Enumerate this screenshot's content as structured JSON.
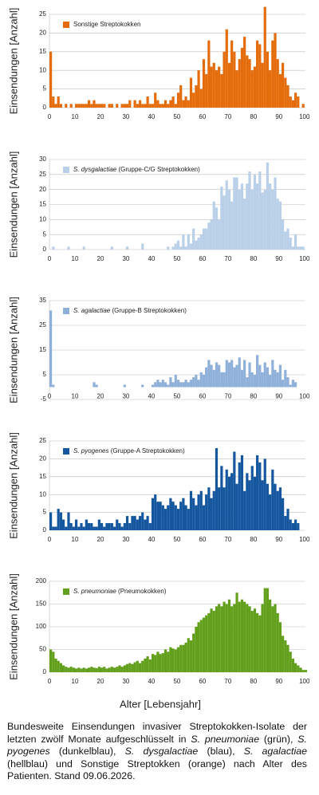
{
  "chart_data": [
    {
      "type": "bar",
      "ylabel": "Einsendungen [Anzahl]",
      "xlim": [
        0,
        101
      ],
      "xticks": [
        0,
        10,
        20,
        30,
        40,
        50,
        60,
        70,
        80,
        90,
        100
      ],
      "ylim": [
        0,
        25
      ],
      "yticks": [
        0,
        5,
        10,
        15,
        20,
        25
      ],
      "grid": true,
      "x": [
        0,
        1,
        2,
        3,
        4,
        5,
        6,
        7,
        8,
        9,
        10,
        11,
        12,
        13,
        14,
        15,
        16,
        17,
        18,
        19,
        20,
        21,
        22,
        23,
        24,
        25,
        26,
        27,
        28,
        29,
        30,
        31,
        32,
        33,
        34,
        35,
        36,
        37,
        38,
        39,
        40,
        41,
        42,
        43,
        44,
        45,
        46,
        47,
        48,
        49,
        50,
        51,
        52,
        53,
        54,
        55,
        56,
        57,
        58,
        59,
        60,
        61,
        62,
        63,
        64,
        65,
        66,
        67,
        68,
        69,
        70,
        71,
        72,
        73,
        74,
        75,
        76,
        77,
        78,
        79,
        80,
        81,
        82,
        83,
        84,
        85,
        86,
        87,
        88,
        89,
        90,
        91,
        92,
        93,
        94,
        95,
        96,
        97,
        98,
        99,
        100
      ],
      "series": [
        {
          "name": "Sonstige Streptokokken",
          "color": "#e46c0a",
          "values": [
            15,
            3,
            1,
            3,
            1,
            0,
            1,
            0,
            1,
            0,
            1,
            1,
            1,
            1,
            1,
            2,
            1,
            2,
            1,
            1,
            1,
            1,
            0,
            1,
            1,
            0,
            1,
            0,
            1,
            1,
            1,
            2,
            0,
            2,
            1,
            2,
            1,
            1,
            3,
            1,
            1,
            4,
            2,
            1,
            1,
            2,
            1,
            2,
            3,
            1,
            4,
            6,
            2,
            3,
            2,
            8,
            4,
            6,
            10,
            5,
            13,
            9,
            18,
            11,
            12,
            10,
            11,
            9,
            15,
            21,
            12,
            18,
            15,
            10,
            13,
            16,
            19,
            14,
            13,
            10,
            11,
            18,
            17,
            12,
            27,
            15,
            10,
            18,
            20,
            13,
            9,
            12,
            8,
            6,
            3,
            2,
            4,
            3,
            0,
            1,
            0
          ]
        }
      ]
    },
    {
      "type": "bar",
      "ylabel": "Einsendungen [Anzahl]",
      "xlim": [
        0,
        101
      ],
      "xticks": [
        0,
        10,
        20,
        30,
        40,
        50,
        60,
        70,
        80,
        90,
        100
      ],
      "ylim": [
        0,
        30
      ],
      "yticks": [
        0,
        5,
        10,
        15,
        20,
        25,
        30
      ],
      "grid": true,
      "x": [
        0,
        1,
        2,
        3,
        4,
        5,
        6,
        7,
        8,
        9,
        10,
        11,
        12,
        13,
        14,
        15,
        16,
        17,
        18,
        19,
        20,
        21,
        22,
        23,
        24,
        25,
        26,
        27,
        28,
        29,
        30,
        31,
        32,
        33,
        34,
        35,
        36,
        37,
        38,
        39,
        40,
        41,
        42,
        43,
        44,
        45,
        46,
        47,
        48,
        49,
        50,
        51,
        52,
        53,
        54,
        55,
        56,
        57,
        58,
        59,
        60,
        61,
        62,
        63,
        64,
        65,
        66,
        67,
        68,
        69,
        70,
        71,
        72,
        73,
        74,
        75,
        76,
        77,
        78,
        79,
        80,
        81,
        82,
        83,
        84,
        85,
        86,
        87,
        88,
        89,
        90,
        91,
        92,
        93,
        94,
        95,
        96,
        97,
        98,
        99,
        100
      ],
      "series": [
        {
          "name": "S. dysgalactiae (Gruppe-C/G Streptokokken)",
          "color": "#b9d0e8",
          "values": [
            0,
            1,
            0,
            0,
            0,
            0,
            0,
            1,
            0,
            0,
            0,
            0,
            0,
            1,
            0,
            0,
            0,
            0,
            0,
            0,
            0,
            0,
            0,
            0,
            1,
            0,
            0,
            0,
            0,
            0,
            1,
            0,
            0,
            0,
            0,
            0,
            2,
            0,
            0,
            0,
            0,
            0,
            0,
            0,
            0,
            0,
            1,
            0,
            1,
            2,
            3,
            1,
            5,
            1,
            5,
            2,
            7,
            3,
            4,
            5,
            7,
            7,
            9,
            10,
            16,
            14,
            10,
            21,
            18,
            23,
            20,
            16,
            24,
            24,
            20,
            22,
            17,
            22,
            26,
            20,
            25,
            22,
            26,
            19,
            20,
            29,
            22,
            20,
            24,
            17,
            16,
            10,
            6,
            7,
            4,
            1,
            5,
            1,
            1,
            1,
            0
          ]
        }
      ]
    },
    {
      "type": "bar",
      "ylabel": "Einsendungen [Anzahl]",
      "xlim": [
        0,
        101
      ],
      "xticks": [
        0,
        10,
        20,
        30,
        40,
        50,
        60,
        70,
        80,
        90,
        100
      ],
      "ylim": [
        -5,
        35
      ],
      "yticks": [
        -5,
        5,
        15,
        25,
        35
      ],
      "grid": true,
      "x": [
        0,
        1,
        2,
        3,
        4,
        5,
        6,
        7,
        8,
        9,
        10,
        11,
        12,
        13,
        14,
        15,
        16,
        17,
        18,
        19,
        20,
        21,
        22,
        23,
        24,
        25,
        26,
        27,
        28,
        29,
        30,
        31,
        32,
        33,
        34,
        35,
        36,
        37,
        38,
        39,
        40,
        41,
        42,
        43,
        44,
        45,
        46,
        47,
        48,
        49,
        50,
        51,
        52,
        53,
        54,
        55,
        56,
        57,
        58,
        59,
        60,
        61,
        62,
        63,
        64,
        65,
        66,
        67,
        68,
        69,
        70,
        71,
        72,
        73,
        74,
        75,
        76,
        77,
        78,
        79,
        80,
        81,
        82,
        83,
        84,
        85,
        86,
        87,
        88,
        89,
        90,
        91,
        92,
        93,
        94,
        95,
        96,
        97,
        98,
        99,
        100
      ],
      "series": [
        {
          "name": "S. agalactiae (Gruppe-B Streptokokken)",
          "color": "#8fb0d8",
          "values": [
            31,
            1,
            0,
            0,
            0,
            0,
            0,
            0,
            0,
            0,
            0,
            0,
            0,
            0,
            0,
            0,
            0,
            2,
            1,
            0,
            0,
            0,
            0,
            0,
            0,
            0,
            0,
            0,
            0,
            1,
            0,
            0,
            0,
            0,
            0,
            0,
            1,
            0,
            0,
            0,
            1,
            2,
            3,
            2,
            3,
            2,
            1,
            4,
            2,
            5,
            3,
            2,
            2,
            3,
            2,
            3,
            4,
            5,
            3,
            6,
            5,
            8,
            11,
            9,
            7,
            10,
            9,
            6,
            6,
            11,
            10,
            11,
            8,
            9,
            12,
            7,
            11,
            4,
            10,
            6,
            5,
            13,
            9,
            6,
            10,
            8,
            5,
            11,
            7,
            6,
            9,
            3,
            7,
            4,
            1,
            3,
            2,
            0,
            0,
            0,
            0
          ]
        }
      ]
    },
    {
      "type": "bar",
      "ylabel": "Einsendungen [Anzahl]",
      "xlim": [
        0,
        101
      ],
      "xticks": [
        0,
        10,
        20,
        30,
        40,
        50,
        60,
        70,
        80,
        90,
        100
      ],
      "ylim": [
        0,
        25
      ],
      "yticks": [
        0,
        5,
        10,
        15,
        20,
        25
      ],
      "grid": true,
      "x": [
        0,
        1,
        2,
        3,
        4,
        5,
        6,
        7,
        8,
        9,
        10,
        11,
        12,
        13,
        14,
        15,
        16,
        17,
        18,
        19,
        20,
        21,
        22,
        23,
        24,
        25,
        26,
        27,
        28,
        29,
        30,
        31,
        32,
        33,
        34,
        35,
        36,
        37,
        38,
        39,
        40,
        41,
        42,
        43,
        44,
        45,
        46,
        47,
        48,
        49,
        50,
        51,
        52,
        53,
        54,
        55,
        56,
        57,
        58,
        59,
        60,
        61,
        62,
        63,
        64,
        65,
        66,
        67,
        68,
        69,
        70,
        71,
        72,
        73,
        74,
        75,
        76,
        77,
        78,
        79,
        80,
        81,
        82,
        83,
        84,
        85,
        86,
        87,
        88,
        89,
        90,
        91,
        92,
        93,
        94,
        95,
        96,
        97,
        98,
        99,
        100
      ],
      "series": [
        {
          "name": "S. pyogenes (Gruppe-A Streptokokken)",
          "color": "#14579f",
          "values": [
            5,
            1,
            1,
            6,
            5,
            3,
            1,
            5,
            2,
            1,
            3,
            1,
            2,
            1,
            3,
            2,
            2,
            1,
            1,
            3,
            2,
            1,
            2,
            2,
            2,
            1,
            3,
            2,
            1,
            2,
            4,
            2,
            4,
            4,
            3,
            4,
            5,
            3,
            4,
            2,
            9,
            10,
            8,
            8,
            7,
            6,
            7,
            9,
            8,
            7,
            6,
            8,
            9,
            7,
            6,
            11,
            9,
            7,
            10,
            11,
            7,
            10,
            12,
            9,
            11,
            23,
            12,
            18,
            12,
            17,
            15,
            16,
            22,
            13,
            19,
            21,
            11,
            16,
            14,
            18,
            15,
            21,
            19,
            14,
            20,
            13,
            10,
            17,
            13,
            11,
            12,
            9,
            4,
            6,
            3,
            2,
            3,
            2,
            0,
            0,
            0
          ]
        }
      ]
    },
    {
      "type": "bar",
      "ylabel": "Einsendungen [Anzahl]",
      "xlim": [
        0,
        101
      ],
      "xticks": [
        0,
        10,
        20,
        30,
        40,
        50,
        60,
        70,
        80,
        90,
        100
      ],
      "ylim": [
        0,
        200
      ],
      "yticks": [
        0,
        50,
        100,
        150,
        200
      ],
      "grid": true,
      "x": [
        0,
        1,
        2,
        3,
        4,
        5,
        6,
        7,
        8,
        9,
        10,
        11,
        12,
        13,
        14,
        15,
        16,
        17,
        18,
        19,
        20,
        21,
        22,
        23,
        24,
        25,
        26,
        27,
        28,
        29,
        30,
        31,
        32,
        33,
        34,
        35,
        36,
        37,
        38,
        39,
        40,
        41,
        42,
        43,
        44,
        45,
        46,
        47,
        48,
        49,
        50,
        51,
        52,
        53,
        54,
        55,
        56,
        57,
        58,
        59,
        60,
        61,
        62,
        63,
        64,
        65,
        66,
        67,
        68,
        69,
        70,
        71,
        72,
        73,
        74,
        75,
        76,
        77,
        78,
        79,
        80,
        81,
        82,
        83,
        84,
        85,
        86,
        87,
        88,
        89,
        90,
        91,
        92,
        93,
        94,
        95,
        96,
        97,
        98,
        99,
        100
      ],
      "series": [
        {
          "name": "S. pneumoniae (Pneumokokken)",
          "color": "#62a01c",
          "values": [
            50,
            45,
            30,
            25,
            20,
            15,
            12,
            10,
            12,
            10,
            8,
            10,
            8,
            10,
            8,
            10,
            12,
            10,
            9,
            12,
            10,
            12,
            8,
            10,
            12,
            10,
            12,
            15,
            12,
            15,
            18,
            20,
            18,
            22,
            25,
            20,
            25,
            30,
            35,
            28,
            40,
            38,
            45,
            40,
            42,
            50,
            45,
            55,
            52,
            50,
            55,
            60,
            60,
            65,
            75,
            70,
            85,
            100,
            110,
            115,
            120,
            125,
            130,
            140,
            135,
            145,
            150,
            145,
            155,
            150,
            160,
            145,
            150,
            175,
            155,
            160,
            155,
            150,
            145,
            135,
            140,
            130,
            125,
            150,
            185,
            185,
            160,
            145,
            150,
            130,
            110,
            80,
            70,
            60,
            45,
            30,
            20,
            15,
            10,
            5,
            5
          ]
        }
      ]
    }
  ],
  "xlabel": "Alter [Lebensjahr]",
  "caption": [
    {
      "text": "Bundesweite Einsendungen invasiver Streptokokken-Isolate der letzten zwölf Monate aufgeschlüsselt in ",
      "italic": false
    },
    {
      "text": "S. pneumoniae",
      "italic": true
    },
    {
      "text": " (grün), ",
      "italic": false
    },
    {
      "text": "S. pyogenes",
      "italic": true
    },
    {
      "text": " (dunkelblau), ",
      "italic": false
    },
    {
      "text": "S. dysgalactiae",
      "italic": true
    },
    {
      "text": " (blau), ",
      "italic": false
    },
    {
      "text": "S. agalactiae",
      "italic": true
    },
    {
      "text": " (hellblau) und Sonstige Streptokken (orange) nach Alter des Patienten. Stand 09.06.2026.",
      "italic": false
    }
  ]
}
